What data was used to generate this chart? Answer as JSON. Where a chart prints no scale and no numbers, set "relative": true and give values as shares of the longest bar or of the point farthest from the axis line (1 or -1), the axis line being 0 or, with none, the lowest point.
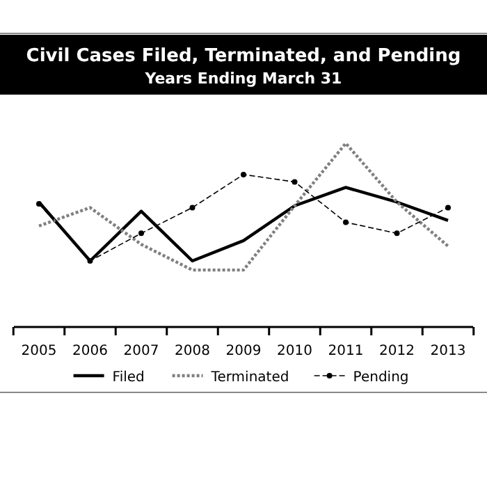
{
  "chart_data": {
    "type": "line",
    "title": "Civil Cases Filed, Terminated, and Pending",
    "subtitle": "Years Ending March 31",
    "relative": true,
    "categories": [
      "2005",
      "2006",
      "2007",
      "2008",
      "2009",
      "2010",
      "2011",
      "2012",
      "2013"
    ],
    "grid": false,
    "legend": "bottom",
    "series": [
      {
        "name": "Filed",
        "color": "#000000",
        "line_style": "solid",
        "marker": "none",
        "values": [
          0.68,
          0.36,
          0.63,
          0.36,
          0.47,
          0.66,
          0.76,
          0.68,
          0.58
        ]
      },
      {
        "name": "Terminated",
        "color": "#808080",
        "line_style": "dotted",
        "marker": "none",
        "values": [
          0.55,
          0.65,
          0.45,
          0.31,
          0.31,
          0.66,
          1,
          0.68,
          0.44
        ]
      },
      {
        "name": "Pending",
        "color": "#000000",
        "line_style": "dashed",
        "marker": "circle",
        "values": [
          0.67,
          0.36,
          0.51,
          0.65,
          0.83,
          0.79,
          0.57,
          0.51,
          0.65
        ]
      }
    ]
  }
}
